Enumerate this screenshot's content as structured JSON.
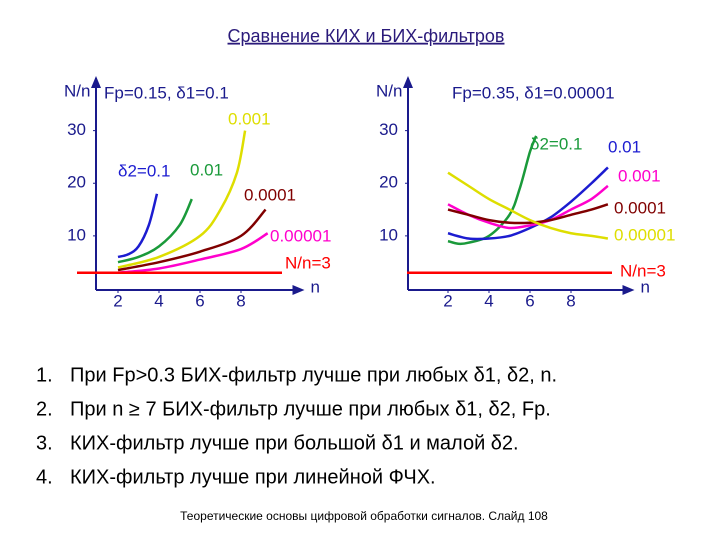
{
  "title": "Сравнение КИХ и БИХ-фильтров",
  "list": [
    {
      "number": "1.",
      "text": "При Fp>0.3  БИХ-фильтр лучше при любых δ1, δ2, n."
    },
    {
      "number": "2.",
      "text": "При n ≥ 7  БИХ-фильтр лучше при любых δ1, δ2, Fp."
    },
    {
      "number": "3.",
      "text": "КИХ-фильтр лучше при большой δ1 и малой δ2."
    },
    {
      "number": "4.",
      "text": "КИХ-фильтр лучше при линейной ФЧХ."
    }
  ],
  "footer": "Теоретические основы цифровой обработки сигналов.  Слайд  108",
  "chart_data": [
    {
      "type": "line",
      "title": "Fp=0.15, δ1=0.1",
      "y_label": "N/n",
      "x_label": "n",
      "xlim": [
        0,
        11
      ],
      "ylim": [
        0,
        40
      ],
      "xticks": [
        2,
        4,
        6,
        8
      ],
      "yticks": [
        10,
        20,
        30
      ],
      "series": [
        {
          "name": "δ2=0.1",
          "color": "#1c1cd0",
          "x": [
            2,
            2.5,
            3,
            3.5,
            3.9
          ],
          "values": [
            6,
            6.5,
            8,
            12,
            18
          ]
        },
        {
          "name": "0.01",
          "color": "#1a9a3a",
          "x": [
            2,
            3,
            4,
            5,
            5.6
          ],
          "values": [
            5,
            6,
            8,
            12,
            17
          ]
        },
        {
          "name": "0.001",
          "color": "#dede00",
          "x": [
            2,
            4,
            6,
            7,
            7.8,
            8.2
          ],
          "values": [
            4,
            6,
            10,
            15,
            22,
            30
          ]
        },
        {
          "name": "0.0001",
          "color": "#800000",
          "x": [
            2,
            4,
            6,
            8,
            9.2
          ],
          "values": [
            3.5,
            5,
            7,
            10,
            15
          ]
        },
        {
          "name": "0.00001",
          "color": "#ff00cc",
          "x": [
            2,
            4,
            6,
            8,
            9.3
          ],
          "values": [
            3,
            3.8,
            5.5,
            7.5,
            10.5
          ]
        },
        {
          "name": "N/n=3",
          "color": "#ff0000",
          "x": [
            0,
            10
          ],
          "values": [
            3,
            3
          ]
        }
      ]
    },
    {
      "type": "line",
      "title": "Fp=0.35,  δ1=0.00001",
      "y_label": "N/n",
      "x_label": "n",
      "xlim": [
        0,
        11
      ],
      "ylim": [
        0,
        40
      ],
      "xticks": [
        2,
        4,
        6,
        8
      ],
      "yticks": [
        10,
        20,
        30
      ],
      "series": [
        {
          "name": "δ2=0.1",
          "color": "#1a9a3a",
          "x": [
            2,
            2.5,
            3,
            4,
            5,
            5.5,
            6,
            6.3
          ],
          "values": [
            9,
            8.5,
            8.7,
            10,
            14,
            19,
            26,
            29
          ]
        },
        {
          "name": "0.01",
          "color": "#1c1cd0",
          "x": [
            2,
            3,
            4,
            5,
            6,
            7,
            8,
            9,
            9.8
          ],
          "values": [
            10.5,
            9.5,
            9.5,
            10,
            11.5,
            13.5,
            16.5,
            20,
            23
          ]
        },
        {
          "name": "0.001",
          "color": "#ff00cc",
          "x": [
            2,
            3,
            4,
            5,
            6,
            7,
            8,
            9,
            9.8
          ],
          "values": [
            16,
            14,
            12.5,
            11.5,
            12,
            13,
            15,
            17,
            19.5
          ]
        },
        {
          "name": "0.0001",
          "color": "#800000",
          "x": [
            2,
            3,
            4,
            5,
            6,
            7,
            8,
            9,
            9.8
          ],
          "values": [
            15,
            14,
            13,
            12.5,
            12.5,
            13,
            14,
            15,
            16
          ]
        },
        {
          "name": "0.00001",
          "color": "#dede00",
          "x": [
            2,
            3,
            4,
            5,
            6,
            7,
            8,
            9,
            9.8
          ],
          "values": [
            22,
            19.5,
            17,
            15,
            13,
            11.5,
            10.5,
            10,
            9.5
          ]
        },
        {
          "name": "N/n=3",
          "color": "#ff0000",
          "x": [
            0,
            10
          ],
          "values": [
            3,
            3
          ]
        }
      ]
    }
  ]
}
